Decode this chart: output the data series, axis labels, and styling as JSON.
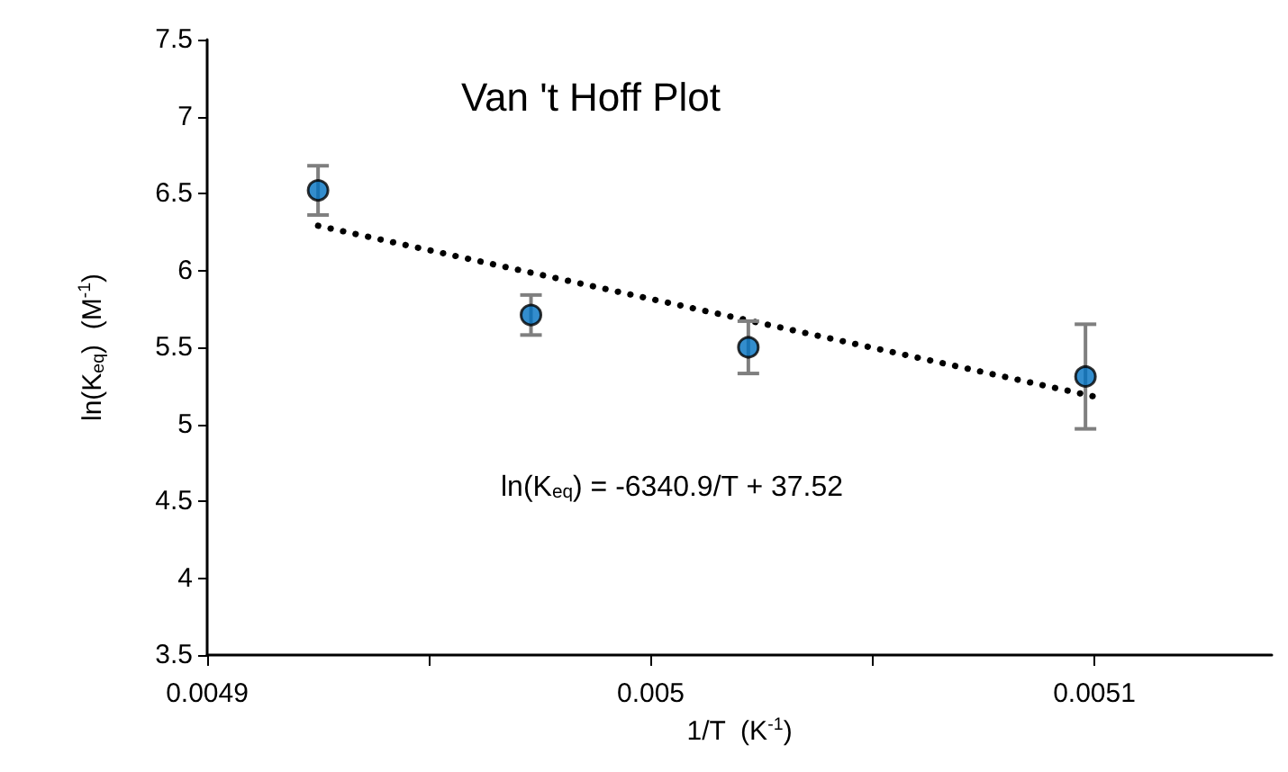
{
  "chart_data": {
    "type": "scatter",
    "title": "Van 't Hoff Plot",
    "xlabel": "1/T  (K$^{-1}$)",
    "ylabel": "ln(K$_{eq}$)  (M$^{-1}$)",
    "x": [
      0.004925,
      0.004973,
      0.005022,
      0.005098
    ],
    "series": [
      {
        "color": "#0070c0",
        "values": [
          6.52,
          5.71,
          5.5,
          5.31
        ],
        "errors": [
          0.16,
          0.13,
          0.17,
          0.34
        ],
        "marker": "circle"
      },
      {
        "type": "line",
        "color": "#000000",
        "x": [
          0.004925,
          0.0051
        ],
        "values": [
          6.29,
          5.18
        ],
        "marker": "none",
        "line_style": "dotted"
      }
    ],
    "annotations": [
      "ln(K$_{eq}$) = -6340.9/T + 37.52"
    ],
    "xlim": [
      0.0049,
      0.00514
    ],
    "xticks": [
      0.0049,
      {
        "value": 0.00495,
        "label": null
      },
      0.005,
      {
        "value": 0.00505,
        "label": null
      },
      0.0051
    ],
    "ylim": [
      3.5,
      7.5
    ],
    "yticks": [
      3.5,
      4,
      4.5,
      5,
      5.5,
      6,
      6.5,
      7,
      7.5
    ],
    "grid": false,
    "legend": false
  }
}
